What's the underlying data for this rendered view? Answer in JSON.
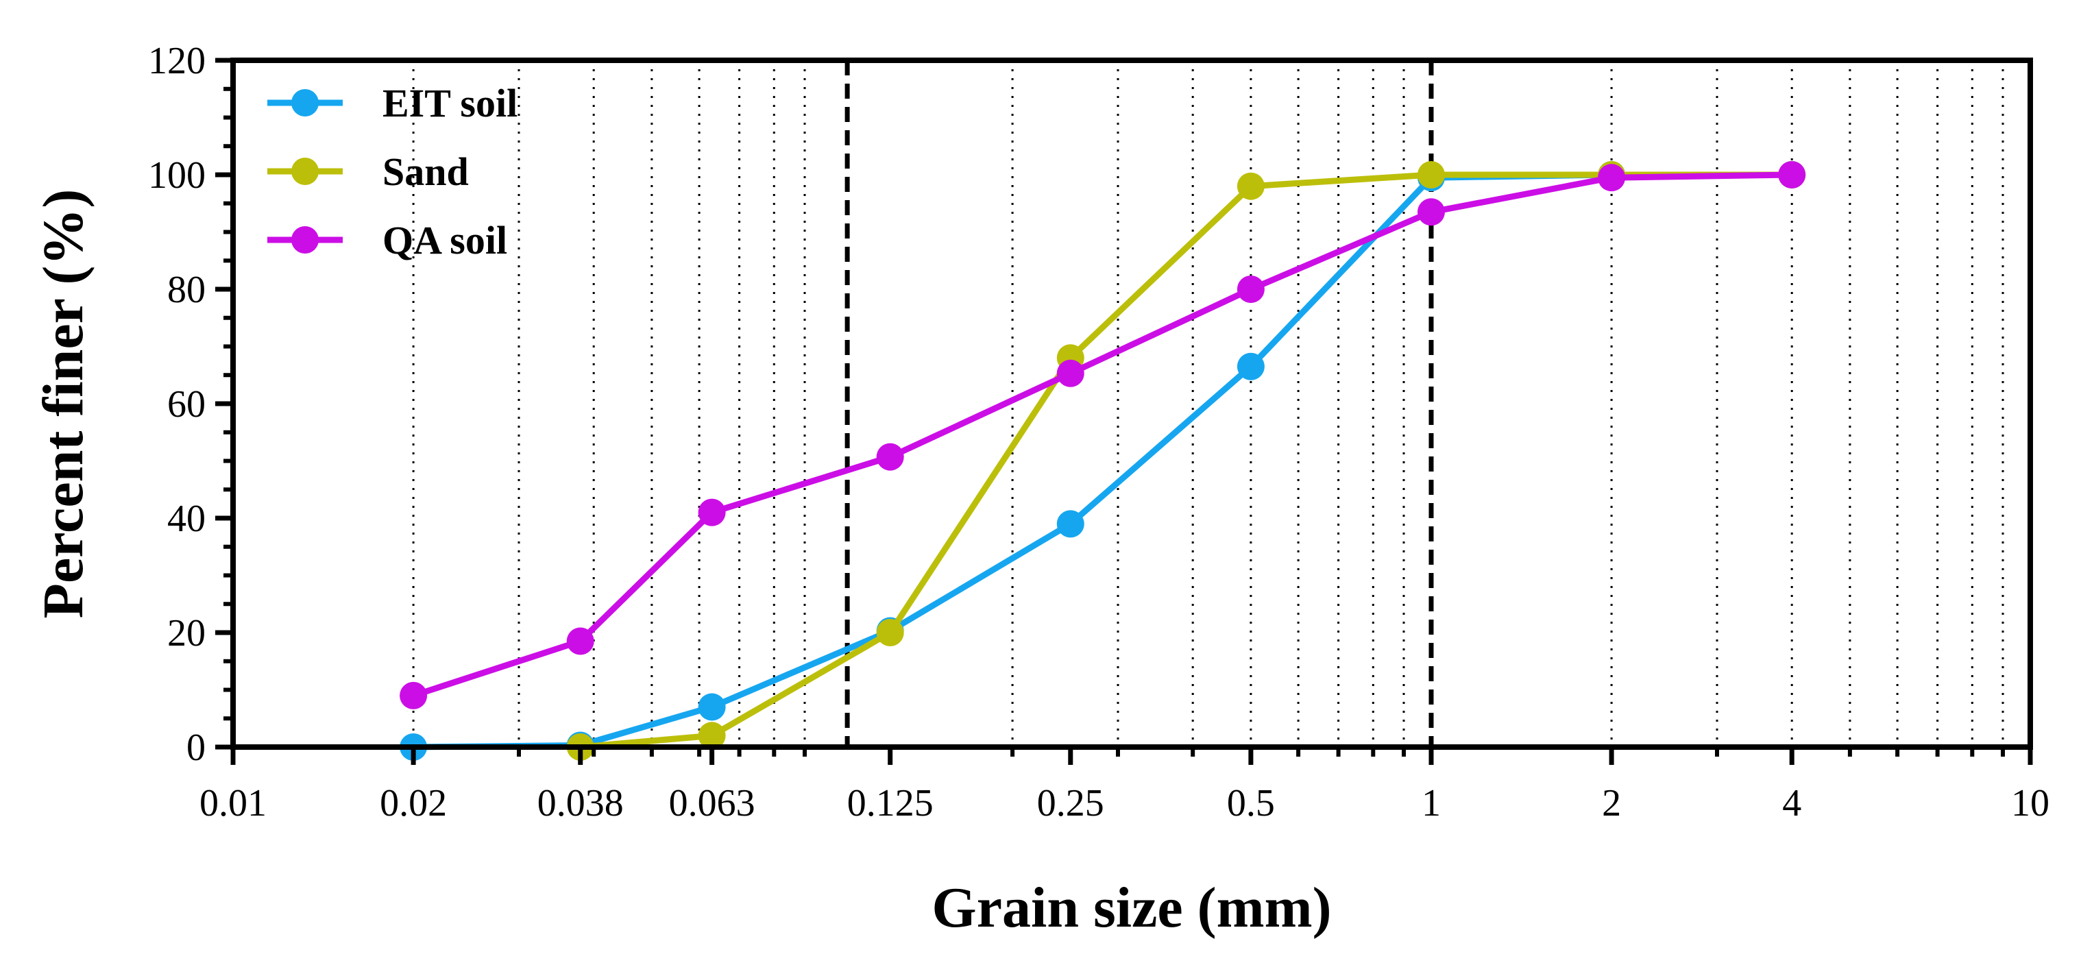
{
  "chart_data": {
    "type": "line",
    "xscale": "log",
    "xlabel": "Grain size (mm)",
    "ylabel": "Percent finer (%)",
    "xlim": [
      0.01,
      10
    ],
    "ylim": [
      0,
      120
    ],
    "x_ticks": [
      {
        "value": 0.01,
        "label": "0.01"
      },
      {
        "value": 0.02,
        "label": "0.02"
      },
      {
        "value": 0.038,
        "label": "0.038"
      },
      {
        "value": 0.063,
        "label": "0.063"
      },
      {
        "value": 0.125,
        "label": "0.125"
      },
      {
        "value": 0.25,
        "label": "0.25"
      },
      {
        "value": 0.5,
        "label": "0.5"
      },
      {
        "value": 1,
        "label": "1"
      },
      {
        "value": 2,
        "label": "2"
      },
      {
        "value": 4,
        "label": "4"
      },
      {
        "value": 10,
        "label": "10"
      }
    ],
    "y_ticks": [
      0,
      20,
      40,
      60,
      80,
      100,
      120
    ],
    "dotted_gridlines_x": [
      0.02,
      0.03,
      0.04,
      0.05,
      0.06,
      0.07,
      0.08,
      0.09,
      0.2,
      0.3,
      0.4,
      0.5,
      0.6,
      0.7,
      0.8,
      0.9,
      2,
      3,
      4,
      5,
      6,
      7,
      8,
      9
    ],
    "dashed_reference_lines_x": [
      0.106,
      1
    ],
    "legend_position": "top-left",
    "series": [
      {
        "name": "EIT soil",
        "color": "#16a6f0",
        "x": [
          0.02,
          0.038,
          0.063,
          0.125,
          0.25,
          0.5,
          1,
          2,
          4
        ],
        "y": [
          0,
          0.3,
          7,
          20.3,
          39,
          66.5,
          99.5,
          100,
          100
        ]
      },
      {
        "name": "Sand",
        "color": "#bcbf0a",
        "x": [
          0.038,
          0.063,
          0.125,
          0.25,
          0.5,
          1,
          2,
          4
        ],
        "y": [
          0,
          2,
          20,
          68,
          98,
          100,
          100,
          100
        ]
      },
      {
        "name": "QA soil",
        "color": "#cc0ee6",
        "x": [
          0.02,
          0.038,
          0.063,
          0.125,
          0.25,
          0.5,
          1,
          2,
          4
        ],
        "y": [
          9,
          18.5,
          41,
          50.7,
          65.3,
          80,
          93.5,
          99.5,
          100
        ]
      }
    ]
  }
}
